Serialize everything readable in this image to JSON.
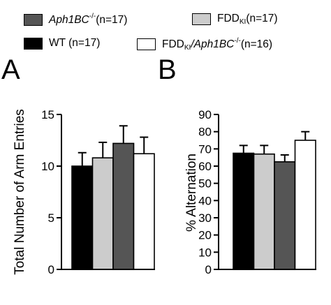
{
  "legend": [
    {
      "key": "aph1bc",
      "parts": [
        [
          "i",
          "Aph1BC"
        ],
        [
          "sup",
          "-/-"
        ],
        [
          "",
          "(n=17)"
        ]
      ],
      "color": "#555555"
    },
    {
      "key": "fddki",
      "parts": [
        [
          "",
          "FDD"
        ],
        [
          "sub",
          "KI"
        ],
        [
          "",
          "(n=17)"
        ]
      ],
      "color": "#cccccc"
    },
    {
      "key": "wt",
      "parts": [
        [
          "",
          "WT (n=17)"
        ]
      ],
      "color": "#000000"
    },
    {
      "key": "fddki_aph1bc",
      "parts": [
        [
          "",
          "FDD"
        ],
        [
          "sub",
          "KI"
        ],
        [
          "i",
          "/Aph1BC"
        ],
        [
          "sup",
          "-/-"
        ],
        [
          "",
          "(n=16)"
        ]
      ],
      "color": "#ffffff"
    }
  ],
  "panels": [
    "A",
    "B"
  ],
  "chart_data": [
    {
      "type": "bar",
      "panel": "A",
      "ylabel": "Total Number of Arm Entries",
      "ylim": [
        0,
        15
      ],
      "yticks": [
        0,
        5,
        10,
        15
      ],
      "groups": [
        {
          "key": "wt",
          "value": 10.0,
          "error": 1.3,
          "color": "#000000"
        },
        {
          "key": "fddki",
          "value": 10.8,
          "error": 1.5,
          "color": "#cccccc"
        },
        {
          "key": "aph1bc",
          "value": 12.2,
          "error": 1.7,
          "color": "#555555"
        },
        {
          "key": "fddki_aph1bc",
          "value": 11.2,
          "error": 1.6,
          "color": "#ffffff"
        }
      ]
    },
    {
      "type": "bar",
      "panel": "B",
      "ylabel": "% Alternation",
      "ylim": [
        0,
        90
      ],
      "yticks": [
        0,
        10,
        20,
        30,
        40,
        50,
        60,
        70,
        80,
        90
      ],
      "groups": [
        {
          "key": "wt",
          "value": 67.5,
          "error": 4.5,
          "color": "#000000"
        },
        {
          "key": "fddki",
          "value": 67.0,
          "error": 5.0,
          "color": "#cccccc"
        },
        {
          "key": "aph1bc",
          "value": 62.5,
          "error": 4.0,
          "color": "#555555"
        },
        {
          "key": "fddki_aph1bc",
          "value": 75.0,
          "error": 5.0,
          "color": "#ffffff"
        }
      ]
    }
  ]
}
